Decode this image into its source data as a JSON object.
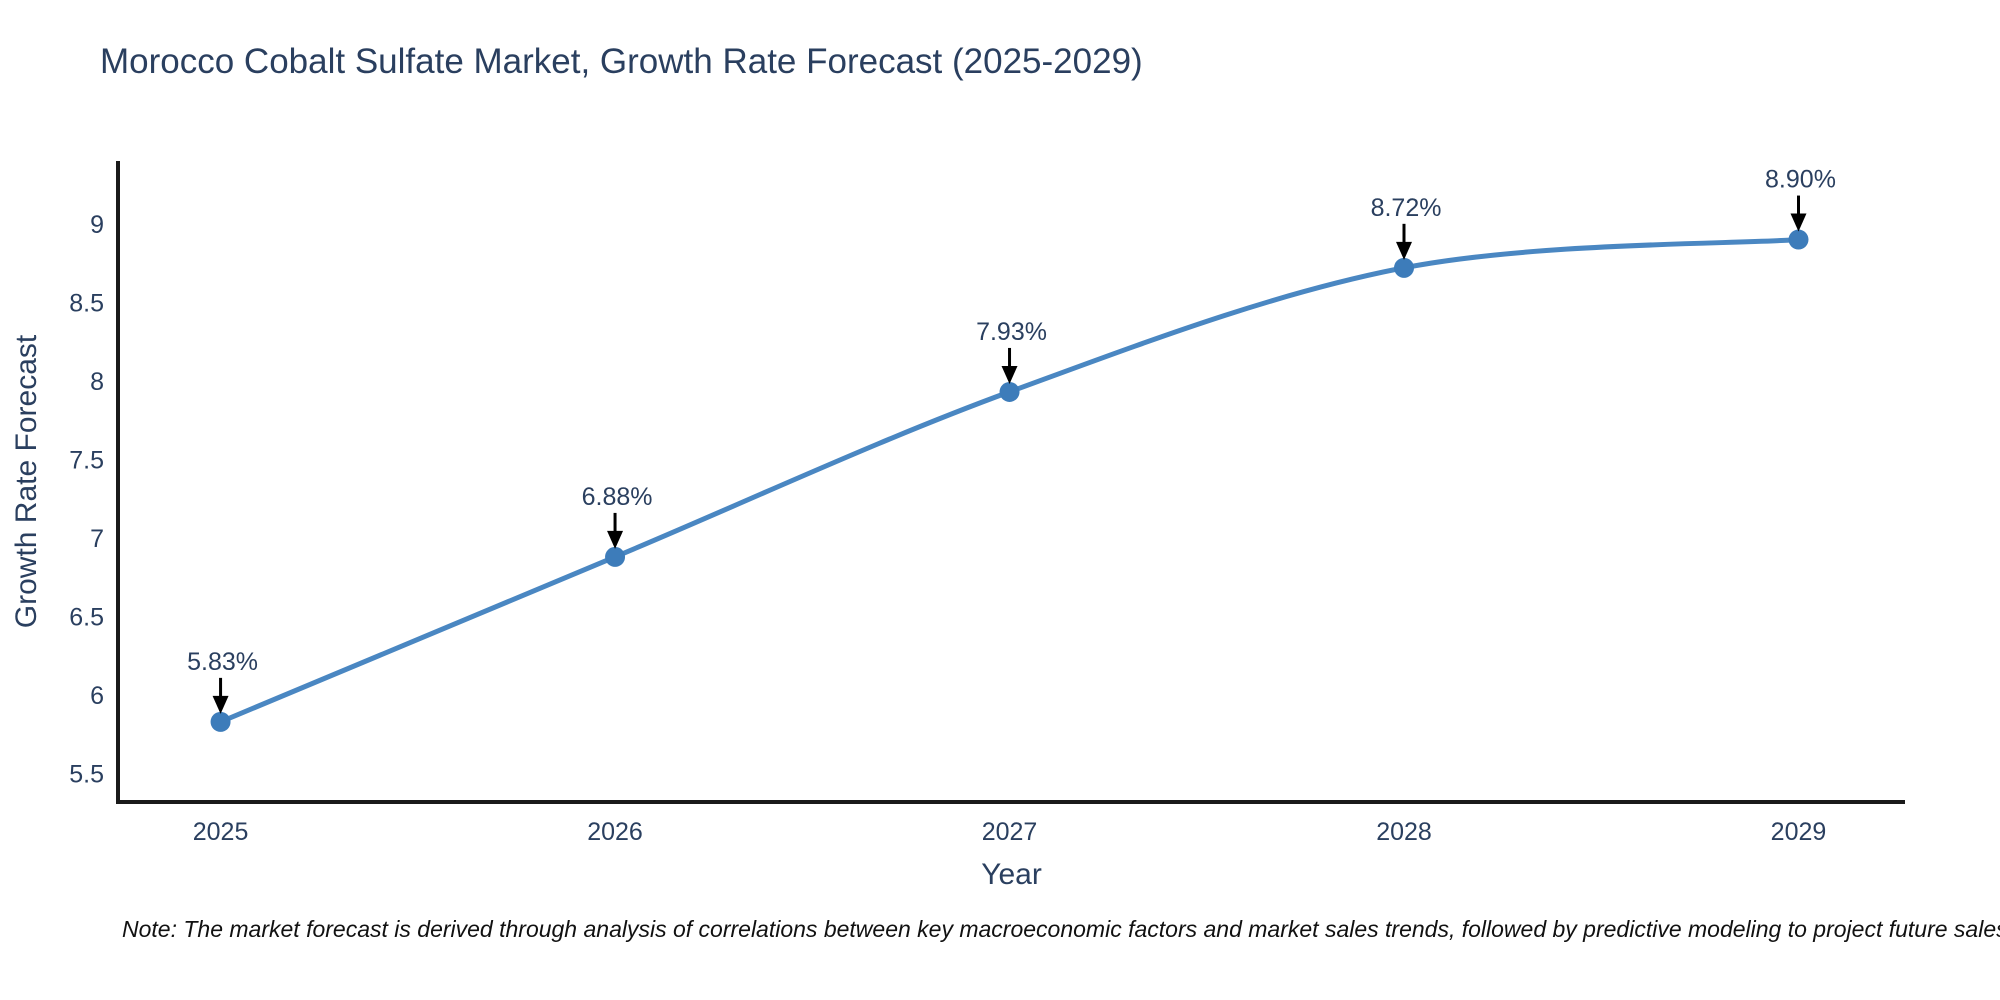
{
  "title": "Morocco Cobalt Sulfate Market, Growth Rate Forecast (2025-2029)",
  "note": "Note: The market forecast is derived through analysis of correlations between key macroeconomic factors and market sales trends, followed by predictive modeling to project future sales",
  "chart_data": {
    "type": "line",
    "title": "Morocco Cobalt Sulfate Market, Growth Rate Forecast (2025-2029)",
    "xlabel": "Year",
    "ylabel": "Growth Rate Forecast",
    "x": [
      2025,
      2026,
      2027,
      2028,
      2029
    ],
    "values": [
      5.83,
      6.88,
      7.93,
      8.72,
      8.9
    ],
    "point_labels": [
      "5.83%",
      "6.88%",
      "7.93%",
      "8.72%",
      "8.90%"
    ],
    "x_ticks": [
      2025,
      2026,
      2027,
      2028,
      2029
    ],
    "x_tick_labels": [
      "2025",
      "2026",
      "2027",
      "2028",
      "2029"
    ],
    "y_ticks": [
      5.5,
      6,
      6.5,
      7,
      7.5,
      8,
      8.5,
      9
    ],
    "y_tick_labels": [
      "5.5",
      "6",
      "6.5",
      "7",
      "7.5",
      "8",
      "8.5",
      "9"
    ],
    "xlim": [
      2024.74,
      2029.27
    ],
    "ylim": [
      5.32,
      9.4
    ],
    "grid": false,
    "legend": "none",
    "line_shape": "spline",
    "colors": {
      "line": "#4a87c2",
      "marker": "#3d7cba",
      "axis": "#1a1a1a",
      "tick_text": "#2a3f5f",
      "annotation_text": "#2a3f5f",
      "arrow": "#000000"
    }
  }
}
